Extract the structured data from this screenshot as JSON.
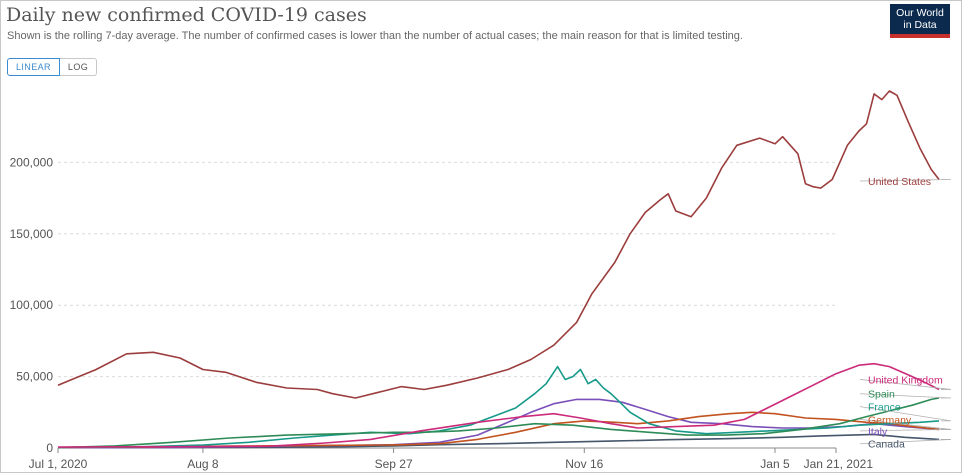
{
  "header": {
    "title": "Daily new confirmed COVID-19 cases",
    "subtitle": "Shown is the rolling 7-day average. The number of confirmed cases is lower than the number of actual cases; the main reason for that is limited testing.",
    "logo": {
      "line1": "Our World",
      "line2": "in Data"
    }
  },
  "controls": {
    "linear": "LINEAR",
    "log": "LOG",
    "selected": "LINEAR"
  },
  "chart_data": {
    "type": "line",
    "title": "Daily new confirmed COVID-19 cases",
    "ylim": [
      0,
      250000
    ],
    "xlim": [
      0,
      204
    ],
    "x_unit": "days after Jul 1, 2020",
    "grid": true,
    "y_ticks": [
      {
        "value": 0,
        "label": "0"
      },
      {
        "value": 50000,
        "label": "50,000"
      },
      {
        "value": 100000,
        "label": "100,000"
      },
      {
        "value": 150000,
        "label": "150,000"
      },
      {
        "value": 200000,
        "label": "200,000"
      }
    ],
    "x_ticks": [
      {
        "value": 0,
        "label": "Jul 1, 2020"
      },
      {
        "value": 38,
        "label": "Aug 8"
      },
      {
        "value": 88,
        "label": "Sep 27"
      },
      {
        "value": 138,
        "label": "Nov 16"
      },
      {
        "value": 188,
        "label": "Jan 5"
      },
      {
        "value": 204,
        "label": "Jan 21, 2021"
      }
    ],
    "series": [
      {
        "name": "United States",
        "color": "#9c3d3d",
        "label_y": 187000,
        "points": [
          [
            0,
            44000
          ],
          [
            10,
            55000
          ],
          [
            18,
            66000
          ],
          [
            25,
            67000
          ],
          [
            32,
            63000
          ],
          [
            38,
            55000
          ],
          [
            44,
            53000
          ],
          [
            52,
            46000
          ],
          [
            60,
            42000
          ],
          [
            68,
            41000
          ],
          [
            72,
            38000
          ],
          [
            78,
            35000
          ],
          [
            84,
            39000
          ],
          [
            90,
            43000
          ],
          [
            96,
            41000
          ],
          [
            102,
            44000
          ],
          [
            110,
            49000
          ],
          [
            118,
            55000
          ],
          [
            124,
            62000
          ],
          [
            130,
            72000
          ],
          [
            136,
            88000
          ],
          [
            140,
            108000
          ],
          [
            146,
            130000
          ],
          [
            150,
            150000
          ],
          [
            154,
            165000
          ],
          [
            158,
            174000
          ],
          [
            160,
            178000
          ],
          [
            162,
            166000
          ],
          [
            166,
            162000
          ],
          [
            170,
            175000
          ],
          [
            174,
            196000
          ],
          [
            178,
            212000
          ],
          [
            184,
            217000
          ],
          [
            188,
            213000
          ],
          [
            190,
            218000
          ],
          [
            194,
            206000
          ],
          [
            196,
            185000
          ],
          [
            198,
            183000
          ],
          [
            200,
            182000
          ],
          [
            203,
            188000
          ],
          [
            207,
            212000
          ],
          [
            210,
            222000
          ],
          [
            212,
            227000
          ],
          [
            214,
            248000
          ],
          [
            216,
            244000
          ],
          [
            218,
            250000
          ],
          [
            220,
            247000
          ],
          [
            223,
            228000
          ],
          [
            226,
            210000
          ],
          [
            229,
            195000
          ],
          [
            231,
            188000
          ]
        ]
      },
      {
        "name": "United Kingdom",
        "color": "#cc2a7a",
        "label_y": 48000,
        "points": [
          [
            0,
            600
          ],
          [
            30,
            900
          ],
          [
            55,
            1200
          ],
          [
            70,
            3500
          ],
          [
            82,
            6000
          ],
          [
            95,
            12000
          ],
          [
            110,
            18000
          ],
          [
            122,
            22000
          ],
          [
            130,
            24000
          ],
          [
            137,
            21000
          ],
          [
            145,
            17000
          ],
          [
            152,
            14000
          ],
          [
            162,
            15000
          ],
          [
            172,
            16000
          ],
          [
            180,
            20000
          ],
          [
            186,
            28000
          ],
          [
            192,
            36000
          ],
          [
            198,
            44000
          ],
          [
            204,
            52000
          ],
          [
            210,
            58000
          ],
          [
            214,
            59000
          ],
          [
            218,
            57000
          ],
          [
            224,
            50000
          ],
          [
            228,
            45000
          ],
          [
            231,
            41000
          ]
        ]
      },
      {
        "name": "Spain",
        "color": "#2e8b57",
        "label_y": 38000,
        "points": [
          [
            0,
            300
          ],
          [
            15,
            1500
          ],
          [
            30,
            4000
          ],
          [
            45,
            7000
          ],
          [
            60,
            9000
          ],
          [
            75,
            10000
          ],
          [
            88,
            11000
          ],
          [
            95,
            11000
          ],
          [
            105,
            12000
          ],
          [
            115,
            14000
          ],
          [
            125,
            17000
          ],
          [
            135,
            16000
          ],
          [
            145,
            13000
          ],
          [
            155,
            11000
          ],
          [
            165,
            9000
          ],
          [
            175,
            9000
          ],
          [
            185,
            10000
          ],
          [
            195,
            13000
          ],
          [
            205,
            17000
          ],
          [
            212,
            22000
          ],
          [
            218,
            26000
          ],
          [
            224,
            30000
          ],
          [
            229,
            34000
          ],
          [
            231,
            35000
          ]
        ]
      },
      {
        "name": "France",
        "color": "#179a8a",
        "label_y": 29000,
        "points": [
          [
            0,
            500
          ],
          [
            20,
            800
          ],
          [
            38,
            2000
          ],
          [
            50,
            4000
          ],
          [
            62,
            7000
          ],
          [
            72,
            9000
          ],
          [
            82,
            11000
          ],
          [
            92,
            10000
          ],
          [
            100,
            12000
          ],
          [
            108,
            16000
          ],
          [
            114,
            22000
          ],
          [
            120,
            28000
          ],
          [
            125,
            38000
          ],
          [
            128,
            45000
          ],
          [
            131,
            57000
          ],
          [
            133,
            48000
          ],
          [
            135,
            50000
          ],
          [
            137,
            55000
          ],
          [
            139,
            45000
          ],
          [
            141,
            48000
          ],
          [
            143,
            42000
          ],
          [
            145,
            38000
          ],
          [
            147,
            33000
          ],
          [
            150,
            25000
          ],
          [
            155,
            17000
          ],
          [
            162,
            12000
          ],
          [
            170,
            10000
          ],
          [
            178,
            11000
          ],
          [
            186,
            12000
          ],
          [
            194,
            13000
          ],
          [
            202,
            14000
          ],
          [
            210,
            16000
          ],
          [
            218,
            17000
          ],
          [
            226,
            18000
          ],
          [
            231,
            19000
          ]
        ]
      },
      {
        "name": "Germany",
        "color": "#c2531e",
        "label_y": 20000,
        "points": [
          [
            0,
            400
          ],
          [
            25,
            700
          ],
          [
            45,
            1300
          ],
          [
            65,
            1700
          ],
          [
            88,
            2200
          ],
          [
            100,
            3000
          ],
          [
            110,
            6000
          ],
          [
            120,
            11000
          ],
          [
            130,
            17000
          ],
          [
            138,
            19000
          ],
          [
            146,
            18000
          ],
          [
            152,
            17000
          ],
          [
            160,
            19000
          ],
          [
            168,
            22000
          ],
          [
            176,
            24000
          ],
          [
            182,
            25000
          ],
          [
            188,
            24000
          ],
          [
            196,
            21000
          ],
          [
            204,
            20000
          ],
          [
            212,
            18000
          ],
          [
            218,
            17000
          ],
          [
            224,
            15000
          ],
          [
            231,
            13000
          ]
        ]
      },
      {
        "name": "Italy",
        "color": "#7a4fb8",
        "label_y": 12000,
        "points": [
          [
            0,
            200
          ],
          [
            30,
            400
          ],
          [
            55,
            1200
          ],
          [
            75,
            1800
          ],
          [
            88,
            2300
          ],
          [
            100,
            4000
          ],
          [
            110,
            9000
          ],
          [
            118,
            18000
          ],
          [
            124,
            25000
          ],
          [
            130,
            31000
          ],
          [
            136,
            34000
          ],
          [
            142,
            34000
          ],
          [
            148,
            32000
          ],
          [
            154,
            27000
          ],
          [
            160,
            22000
          ],
          [
            166,
            18000
          ],
          [
            174,
            17000
          ],
          [
            182,
            15000
          ],
          [
            190,
            14000
          ],
          [
            198,
            14000
          ],
          [
            206,
            15000
          ],
          [
            214,
            17000
          ],
          [
            222,
            15000
          ],
          [
            231,
            13000
          ]
        ]
      },
      {
        "name": "Canada",
        "color": "#46566b",
        "label_y": 3000,
        "points": [
          [
            0,
            300
          ],
          [
            30,
            400
          ],
          [
            55,
            500
          ],
          [
            75,
            900
          ],
          [
            88,
            1500
          ],
          [
            100,
            2300
          ],
          [
            115,
            3000
          ],
          [
            130,
            4000
          ],
          [
            145,
            4800
          ],
          [
            160,
            5800
          ],
          [
            175,
            6500
          ],
          [
            190,
            7500
          ],
          [
            200,
            8500
          ],
          [
            208,
            9000
          ],
          [
            214,
            9500
          ],
          [
            222,
            7500
          ],
          [
            231,
            6000
          ]
        ]
      }
    ]
  }
}
